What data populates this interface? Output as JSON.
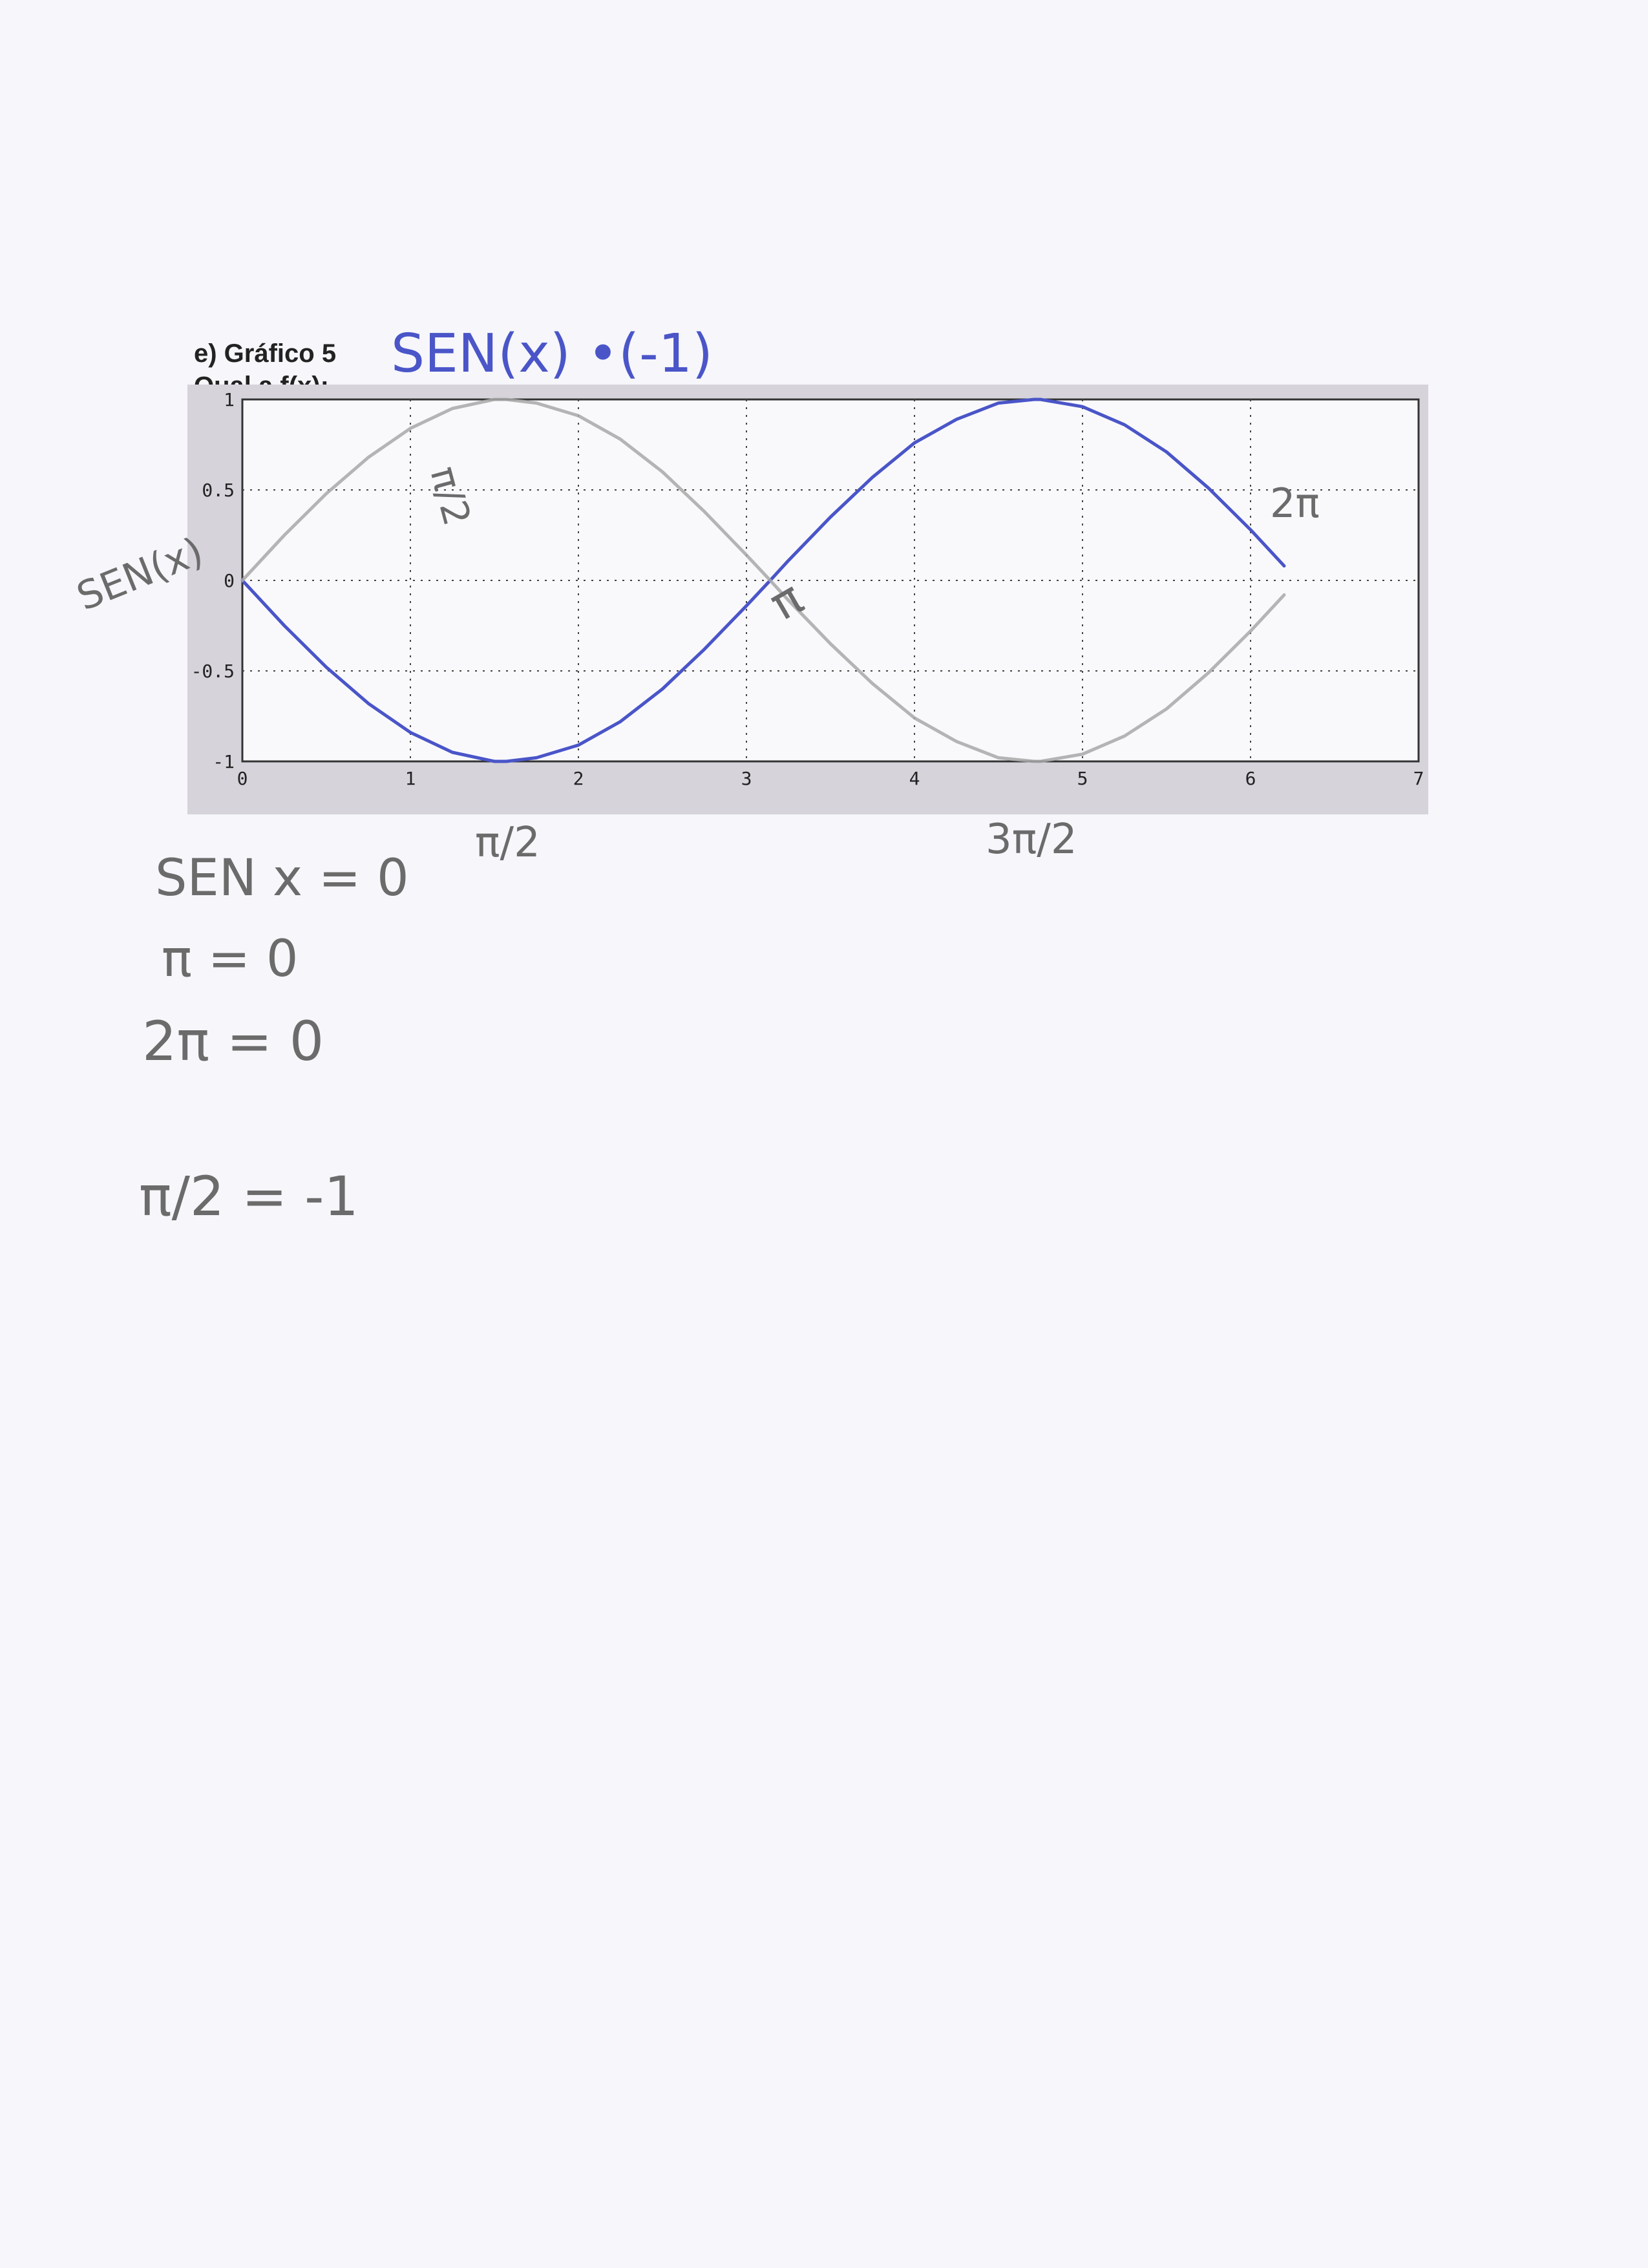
{
  "header": {
    "exercise_label": "e) Gráfico 5",
    "question_label": "Qual a f(x):",
    "answer_handwritten": "SEN(x) •(-1)"
  },
  "chart_data": {
    "type": "line",
    "xlim": [
      0,
      7
    ],
    "ylim": [
      -1,
      1
    ],
    "xticks": [
      "0",
      "1",
      "2",
      "3",
      "4",
      "5",
      "6",
      "7"
    ],
    "yticks": [
      "1",
      "0.5",
      "0",
      "-0.5",
      "-1"
    ],
    "grid": true,
    "series": [
      {
        "color": "#4a55c8",
        "x": [
          0,
          0.25,
          0.5,
          0.75,
          1.0,
          1.25,
          1.5,
          1.5708,
          1.75,
          2.0,
          2.25,
          2.5,
          2.75,
          3.0,
          3.1416,
          3.25,
          3.5,
          3.75,
          4.0,
          4.25,
          4.5,
          4.7124,
          4.75,
          5.0,
          5.25,
          5.5,
          5.75,
          6.0,
          6.2
        ],
        "y": [
          0,
          -0.25,
          -0.48,
          -0.68,
          -0.84,
          -0.95,
          -1.0,
          -1.0,
          -0.98,
          -0.91,
          -0.78,
          -0.6,
          -0.38,
          -0.14,
          0,
          0.11,
          0.35,
          0.57,
          0.76,
          0.89,
          0.98,
          1.0,
          1.0,
          0.96,
          0.86,
          0.71,
          0.51,
          0.28,
          0.08
        ]
      },
      {
        "color": "#a8a8a8",
        "x": [
          0,
          0.25,
          0.5,
          0.75,
          1.0,
          1.25,
          1.5,
          1.5708,
          1.75,
          2.0,
          2.25,
          2.5,
          2.75,
          3.0,
          3.1416,
          3.25,
          3.5,
          3.75,
          4.0,
          4.25,
          4.5,
          4.7124,
          4.75,
          5.0,
          5.25,
          5.5,
          5.75,
          6.0,
          6.2
        ],
        "y": [
          0,
          0.25,
          0.48,
          0.68,
          0.84,
          0.95,
          1.0,
          1.0,
          0.98,
          0.91,
          0.78,
          0.6,
          0.38,
          0.14,
          0,
          -0.11,
          -0.35,
          -0.57,
          -0.76,
          -0.89,
          -0.98,
          -1.0,
          -1.0,
          -0.96,
          -0.86,
          -0.71,
          -0.51,
          -0.28,
          -0.08
        ]
      }
    ]
  },
  "annotations": {
    "ylabel_handwritten": "SEN(x)",
    "pi_over_2_top": "π/2",
    "pi_over_2_bottom": "π/2",
    "pi": "π",
    "three_pi_over_2": "3π/2",
    "two_pi": "2π"
  },
  "notes": {
    "line1": "SEN x = 0",
    "line2": "π = 0",
    "line3": "2π = 0",
    "line4": "π/2 = -1"
  }
}
